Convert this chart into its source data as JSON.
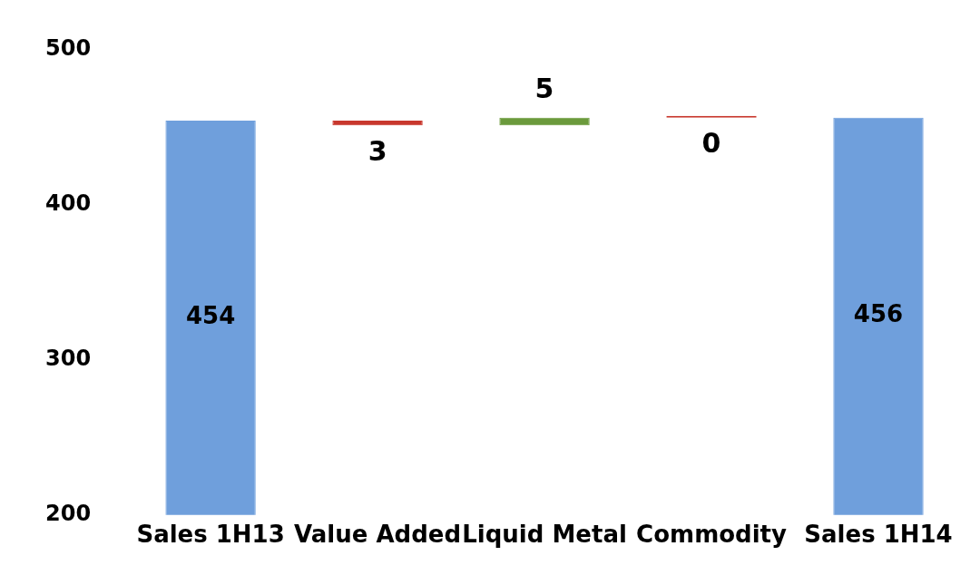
{
  "chart_data": {
    "type": "bar",
    "categories": [
      "Sales 1H13",
      "Value Added",
      "Liquid Metal",
      "Commodity",
      "Sales 1H14"
    ],
    "values": [
      454,
      -3,
      5,
      0,
      456
    ],
    "base": [
      null,
      454,
      451,
      456,
      null
    ],
    "colors": [
      "#6f9fdc",
      "#c8372d",
      "#6b9a3c",
      "#c8372d",
      "#6f9fdc"
    ],
    "value_labels": [
      "454",
      "3",
      "5",
      "0",
      "456"
    ],
    "ylim": [
      200,
      500
    ],
    "yticks": [
      200,
      300,
      400,
      500
    ],
    "grid": false,
    "legend": false
  }
}
